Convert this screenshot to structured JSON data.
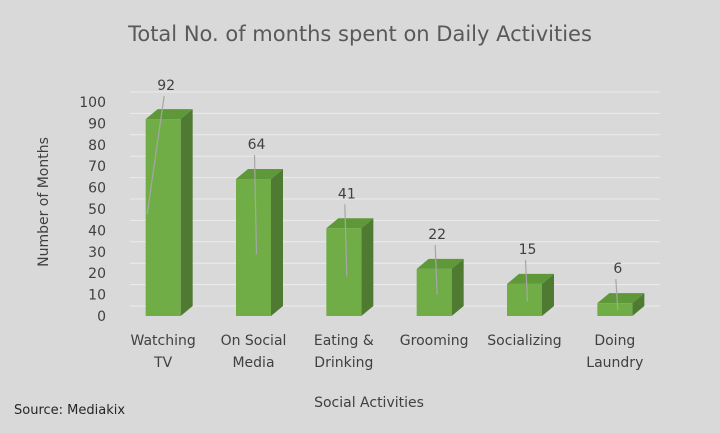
{
  "chart_data": {
    "type": "bar",
    "title": "Total No. of months spent on Daily Activities",
    "xlabel": "Social Activities",
    "ylabel": "Number of Months",
    "categories": [
      [
        "Watching",
        "TV"
      ],
      [
        "On Social",
        "Media"
      ],
      [
        "Eating &",
        "Drinking"
      ],
      [
        "Grooming"
      ],
      [
        "Socializing"
      ],
      [
        "Doing",
        "Laundry"
      ]
    ],
    "values": [
      92,
      64,
      41,
      22,
      15,
      6
    ],
    "ylim": [
      0,
      100
    ],
    "yticks": [
      0,
      10,
      20,
      30,
      40,
      50,
      60,
      70,
      80,
      90,
      100
    ],
    "grid": true,
    "legend": "none",
    "style": "3d-column",
    "colors": {
      "front": "#70ad47",
      "side": "#4e7a31",
      "top": "#5e9838",
      "background": "#d9d9d9",
      "leader": "#a6a6a6"
    }
  },
  "footer": {
    "source": "Source: Mediakix"
  }
}
